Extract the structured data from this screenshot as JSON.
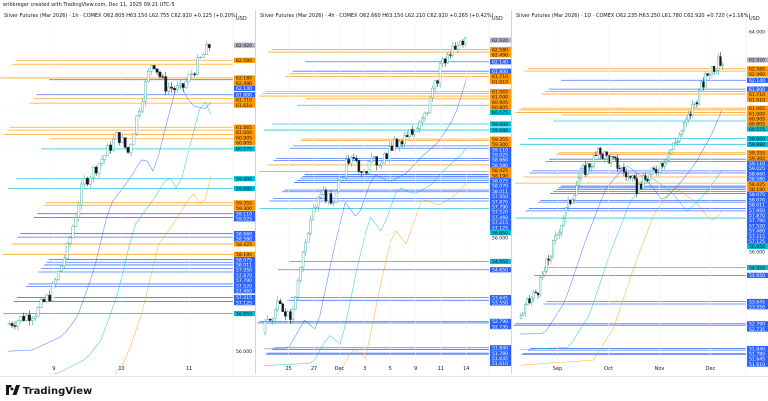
{
  "credit": "erikbreger created with TradingView.com, Dec 11, 2025 09:21 UTC-5",
  "brand": "TradingView",
  "chart_data": [
    {
      "type": "candlestick",
      "title": "Silver Futures (Mar 2026) · 1h · COMEX",
      "ohlc": "O62.805 H63.150 L62.755 C62.920 +0.125 (+0.20%)",
      "currency": "USD",
      "price_labels": [
        "62.920",
        "62.580",
        "62.180",
        "62.490",
        "62.140",
        "61.800",
        "61.710",
        "61.610",
        "61.065",
        "61.000",
        "60.905",
        "60.805",
        "60.575",
        "59.900",
        "59.680",
        "59.355",
        "59.300",
        "59.110",
        "59.025",
        "58.660",
        "58.580",
        "58.425",
        "58.190",
        "58.075",
        "58.011",
        "57.950",
        "57.870",
        "57.790",
        "57.520",
        "57.460",
        "57.215",
        "57.125",
        "56.850",
        "56.000"
      ],
      "x_ticks": [
        "9",
        "10",
        "11"
      ],
      "y_range": [
        55.8,
        63.4
      ]
    },
    {
      "type": "candlestick",
      "title": "Silver Futures (Mar 2026) · 4h · COMEX",
      "ohlc": "O62.660 H63.150 L62.210 C62.920 +0.265 (+0.42%)",
      "currency": "USD",
      "price_labels": [
        "62.920",
        "62.580",
        "62.490",
        "62.140",
        "61.800",
        "61.710",
        "61.610",
        "61.065",
        "61.000",
        "60.905",
        "60.805",
        "60.575",
        "59.900",
        "59.680",
        "59.355",
        "59.300",
        "59.110",
        "59.025",
        "58.660",
        "58.580",
        "58.425",
        "58.190",
        "58.075",
        "58.070",
        "58.011",
        "57.950",
        "57.870",
        "57.790",
        "57.520",
        "57.460",
        "57.215",
        "57.125",
        "56.850",
        "56.000",
        "54.950",
        "54.650",
        "53.645",
        "53.550",
        "52.790",
        "52.735",
        "51.840",
        "51.780",
        "51.645",
        "51.610"
      ],
      "x_ticks": [
        "25",
        "27",
        "Dec",
        "3",
        "5",
        "9",
        "11",
        "14"
      ],
      "y_range": [
        51.4,
        63.5
      ]
    },
    {
      "type": "candlestick",
      "title": "Silver Futures (Mar 2026) · 1D · COMEX",
      "ohlc": "O62.235 H63.250 L61.780 C62.920 +0.720 (+1.16%)",
      "currency": "USD",
      "price_labels": [
        "64.000",
        "62.920",
        "62.580",
        "62.490",
        "62.140",
        "61.800",
        "61.710",
        "61.610",
        "61.065",
        "61.000",
        "60.905",
        "60.805",
        "60.575",
        "59.900",
        "59.680",
        "59.355",
        "59.300",
        "59.110",
        "59.025",
        "58.660",
        "58.580",
        "58.425",
        "58.190",
        "58.075",
        "58.070",
        "58.011",
        "57.950",
        "57.870",
        "57.790",
        "57.520",
        "57.460",
        "57.215",
        "57.125",
        "56.850",
        "56.000",
        "54.950",
        "54.650",
        "53.645",
        "53.550",
        "52.790",
        "52.735",
        "51.840",
        "51.780",
        "51.645",
        "51.610"
      ],
      "x_ticks": [
        "Sep",
        "Oct",
        "Nov",
        "Dec"
      ],
      "y_range": [
        51.4,
        64.3
      ]
    }
  ],
  "colors": {
    "up": "#26a69a",
    "down": "#131722",
    "support": "#2962ff",
    "resistance": "#ff9800",
    "level_line": "#00bcd4",
    "grid": "#f0f3fa"
  },
  "panels": [
    {
      "title": "Silver Futures (Mar 2026) · 1h · COMEX",
      "ohlc": "O62.805 H63.150 L62.755 C62.920 +0.125 (+0.20%)",
      "currency": "USD"
    },
    {
      "title": "Silver Futures (Mar 2026) · 4h · COMEX",
      "ohlc": "O62.660 H63.150 L62.210 C62.920 +0.265 (+0.42%)",
      "currency": "USD"
    },
    {
      "title": "Silver Futures (Mar 2026) · 1D · COMEX",
      "ohlc": "O62.235 H63.250 L61.780 C62.920 +0.720 (+1.16%)",
      "currency": "USD"
    }
  ]
}
